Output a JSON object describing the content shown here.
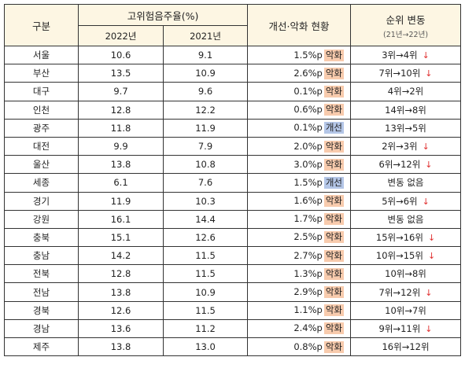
{
  "headers": {
    "region": "구분",
    "rate_group": "고위험음주율(%)",
    "year_2022": "2022년",
    "year_2021": "2021년",
    "status": "개선·악화 현황",
    "rank_title": "순위 변동",
    "rank_sub": "(21년→22년)"
  },
  "colors": {
    "header_bg": "#fdf6e3",
    "worse_badge": "#f8cbad",
    "better_badge": "#b4c6e7",
    "down_arrow": "#e03030"
  },
  "rows": [
    {
      "region": "서울",
      "y2022": "10.6",
      "y2021": "9.1",
      "change": "1.5%p",
      "status": "악화",
      "rank": "3위→4위",
      "arrow": "↓"
    },
    {
      "region": "부산",
      "y2022": "13.5",
      "y2021": "10.9",
      "change": "2.6%p",
      "status": "악화",
      "rank": "7위→10위",
      "arrow": "↓"
    },
    {
      "region": "대구",
      "y2022": "9.7",
      "y2021": "9.6",
      "change": "0.1%p",
      "status": "악화",
      "rank": "4위→2위",
      "arrow": ""
    },
    {
      "region": "인천",
      "y2022": "12.8",
      "y2021": "12.2",
      "change": "0.6%p",
      "status": "악화",
      "rank": "14위→8위",
      "arrow": ""
    },
    {
      "region": "광주",
      "y2022": "11.8",
      "y2021": "11.9",
      "change": "0.1%p",
      "status": "개선",
      "rank": "13위→5위",
      "arrow": ""
    },
    {
      "region": "대전",
      "y2022": "9.9",
      "y2021": "7.9",
      "change": "2.0%p",
      "status": "악화",
      "rank": "2위→3위",
      "arrow": "↓"
    },
    {
      "region": "울산",
      "y2022": "13.8",
      "y2021": "10.8",
      "change": "3.0%p",
      "status": "악화",
      "rank": "6위→12위",
      "arrow": "↓"
    },
    {
      "region": "세종",
      "y2022": "6.1",
      "y2021": "7.6",
      "change": "1.5%p",
      "status": "개선",
      "rank": "변동 없음",
      "arrow": ""
    },
    {
      "region": "경기",
      "y2022": "11.9",
      "y2021": "10.3",
      "change": "1.6%p",
      "status": "악화",
      "rank": "5위→6위",
      "arrow": "↓"
    },
    {
      "region": "강원",
      "y2022": "16.1",
      "y2021": "14.4",
      "change": "1.7%p",
      "status": "악화",
      "rank": "변동 없음",
      "arrow": ""
    },
    {
      "region": "충북",
      "y2022": "15.1",
      "y2021": "12.6",
      "change": "2.5%p",
      "status": "악화",
      "rank": "15위→16위",
      "arrow": "↓"
    },
    {
      "region": "충남",
      "y2022": "14.2",
      "y2021": "11.5",
      "change": "2.7%p",
      "status": "악화",
      "rank": "10위→15위",
      "arrow": "↓"
    },
    {
      "region": "전북",
      "y2022": "12.8",
      "y2021": "11.5",
      "change": "1.3%p",
      "status": "악화",
      "rank": "10위→8위",
      "arrow": ""
    },
    {
      "region": "전남",
      "y2022": "13.8",
      "y2021": "10.9",
      "change": "2.9%p",
      "status": "악화",
      "rank": "7위→12위",
      "arrow": "↓"
    },
    {
      "region": "경북",
      "y2022": "12.6",
      "y2021": "11.5",
      "change": "1.1%p",
      "status": "악화",
      "rank": "10위→7위",
      "arrow": ""
    },
    {
      "region": "경남",
      "y2022": "13.6",
      "y2021": "11.2",
      "change": "2.4%p",
      "status": "악화",
      "rank": "9위→11위",
      "arrow": "↓"
    },
    {
      "region": "제주",
      "y2022": "13.8",
      "y2021": "13.0",
      "change": "0.8%p",
      "status": "악화",
      "rank": "16위→12위",
      "arrow": ""
    }
  ]
}
